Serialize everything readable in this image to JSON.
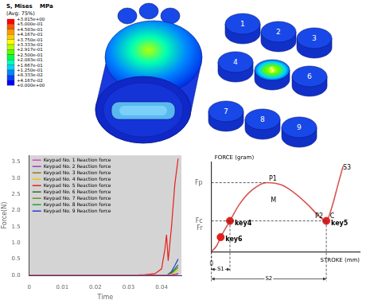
{
  "contour_legend": {
    "title": "S, Mises",
    "subtitle": "(Avg: 75%)",
    "unit": "MPa",
    "labels": [
      "+3.815e+00",
      "+5.000e-01",
      "+4.583e-01",
      "+4.167e-01",
      "+3.750e-01",
      "+3.333e-01",
      "+2.917e-01",
      "+2.500e-01",
      "+2.083e-01",
      "+1.667e-01",
      "+1.250e-01",
      "+8.333e-02",
      "+4.167e-02",
      "+0.000e+00"
    ],
    "colors": [
      "#ff0000",
      "#ff5500",
      "#ff9900",
      "#ffcc00",
      "#ffff00",
      "#b4ff00",
      "#5aff00",
      "#00ff3c",
      "#00ffb4",
      "#00d2ff",
      "#0087ff",
      "#0041ff",
      "#0000ff"
    ]
  },
  "keypads": {
    "labels": [
      "1",
      "2",
      "3",
      "4",
      "5",
      "6",
      "7",
      "8",
      "9"
    ]
  },
  "chart_data": [
    {
      "type": "line",
      "x_label": "Time",
      "y_label": "Force(N)",
      "x": [
        0,
        0.005,
        0.01,
        0.015,
        0.02,
        0.025,
        0.03,
        0.035,
        0.038,
        0.04,
        0.041,
        0.0415,
        0.042,
        0.043,
        0.044,
        0.045
      ],
      "xlim": [
        0,
        0.046
      ],
      "xticks": [
        0,
        0.01,
        0.02,
        0.03,
        0.04
      ],
      "ylim": [
        0,
        3.7
      ],
      "yticks": [
        {
          "value": 0,
          "label": "0.0"
        },
        {
          "value": 0.5,
          "label": "0.5"
        },
        {
          "value": 1,
          "label": "1.0"
        },
        {
          "value": 1.5,
          "label": "1.5"
        },
        {
          "value": 2,
          "label": "2.0"
        },
        {
          "value": 2.5,
          "label": "2.5"
        },
        {
          "value": 3,
          "label": "3.0"
        },
        {
          "value": 3.5,
          "label": "3.5"
        }
      ],
      "grid": false,
      "legend": "upper left",
      "series": [
        {
          "name": "Keypad No. 1 Reaction force",
          "color": "#e83fc8",
          "values": [
            0,
            0,
            0,
            0,
            0,
            0,
            0,
            0,
            0,
            0,
            0,
            0,
            0,
            0.01,
            0.02,
            0.04
          ]
        },
        {
          "name": "Keypad No. 2 Reaction force",
          "color": "#9b3fbf",
          "values": [
            0,
            0,
            0,
            0,
            0,
            0,
            0,
            0,
            0,
            0,
            0,
            0,
            0,
            0.01,
            0.03,
            0.06
          ]
        },
        {
          "name": "Keypad No. 3 Reaction force",
          "color": "#8a7a20",
          "values": [
            0,
            0,
            0,
            0,
            0,
            0,
            0,
            0,
            0,
            0,
            0,
            0,
            0,
            0.01,
            0.02,
            0.03
          ]
        },
        {
          "name": "Keypad No. 4 Reaction force",
          "color": "#e8c800",
          "values": [
            0,
            0,
            0,
            0,
            0,
            0,
            0,
            0,
            0,
            0,
            0,
            0,
            0.01,
            0.04,
            0.1,
            0.18
          ]
        },
        {
          "name": "Keypad No. 5 Reaction force",
          "color": "#e8201c",
          "values": [
            0,
            0,
            0,
            0,
            0,
            0,
            0,
            0.02,
            0.05,
            0.2,
            0.8,
            1.25,
            0.45,
            1.5,
            2.8,
            3.6
          ]
        },
        {
          "name": "Keypad No. 6 Reaction force",
          "color": "#2a6e2a",
          "values": [
            0,
            0,
            0,
            0,
            0,
            0,
            0,
            0,
            0,
            0,
            0,
            0,
            0.02,
            0.08,
            0.2,
            0.32
          ]
        },
        {
          "name": "Keypad No. 7 Reaction force",
          "color": "#7a8a20",
          "values": [
            0,
            0,
            0,
            0,
            0,
            0,
            0,
            0,
            0,
            0,
            0,
            0,
            0,
            0.01,
            0.03,
            0.06
          ]
        },
        {
          "name": "Keypad No. 8 Reaction force",
          "color": "#20a040",
          "values": [
            0,
            0,
            0,
            0,
            0,
            0,
            0,
            0,
            0,
            0,
            0,
            0,
            0.02,
            0.06,
            0.15,
            0.25
          ]
        },
        {
          "name": "Keypad No. 9 Reaction force",
          "color": "#2040d0",
          "values": [
            0,
            0,
            0,
            0,
            0,
            0,
            0,
            0,
            0,
            0,
            0,
            0,
            0.03,
            0.12,
            0.3,
            0.5
          ]
        }
      ]
    },
    {
      "type": "line",
      "x_label": "STROKE (mm)",
      "y_label": "FORCE (gram)",
      "x": [
        0,
        0.3,
        0.5,
        1.0,
        1.5,
        2.2,
        3.0,
        3.8,
        4.5,
        5.2,
        5.8,
        6.2,
        6.5,
        6.8,
        7.1
      ],
      "values": [
        0,
        0.8,
        1.8,
        3.8,
        5.8,
        7.6,
        8.5,
        8.2,
        7.2,
        5.8,
        4.4,
        3.8,
        5.5,
        8.0,
        10.5
      ],
      "color": "#d9534f",
      "xlim": [
        0,
        8
      ],
      "xticks": [
        0
      ],
      "ylim": [
        0,
        11
      ],
      "yticks": [
        {
          "value": 8.5,
          "label": "Fp"
        },
        {
          "value": 3.8,
          "label": "Fc"
        },
        {
          "value": 2.9,
          "label": "Fr"
        }
      ],
      "grid": false,
      "annotations": [
        {
          "text": "P1",
          "x": 3.1,
          "y": 9.0
        },
        {
          "text": "M",
          "x": 3.2,
          "y": 6.3
        },
        {
          "text": "P2",
          "x": 5.6,
          "y": 4.4
        },
        {
          "text": "C",
          "x": 6.4,
          "y": 4.4
        },
        {
          "text": "S3",
          "x": 7.1,
          "y": 10.3
        }
      ],
      "markers": {
        "color": "#e02020",
        "points": [
          {
            "label": "key4",
            "x": 1.0,
            "y": 3.8
          },
          {
            "label": "key6",
            "x": 0.5,
            "y": 1.8
          },
          {
            "label": "key5",
            "x": 6.2,
            "y": 3.8
          }
        ]
      },
      "dimensions": [
        {
          "label": "S1",
          "from": 0,
          "to": 1.0
        },
        {
          "label": "S2",
          "from": 0,
          "to": 6.2
        }
      ]
    }
  ]
}
